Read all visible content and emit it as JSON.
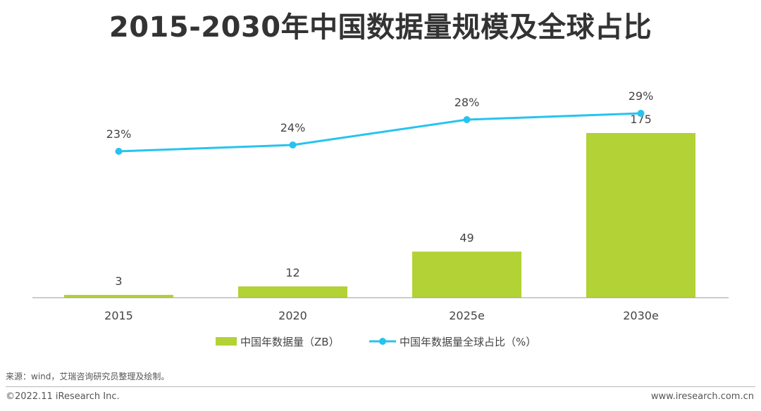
{
  "chart_data": {
    "type": "bar",
    "title": "2015-2030年中国数据量规模及全球占比",
    "categories": [
      "2015",
      "2020",
      "2025e",
      "2030e"
    ],
    "series": [
      {
        "name": "中国年数据量（ZB）",
        "type": "bar",
        "values": [
          3,
          12,
          49,
          175
        ],
        "labels": [
          "3",
          "12",
          "49",
          "175"
        ],
        "color": "#b2d235"
      },
      {
        "name": "中国年数据量全球占比（%）",
        "type": "line",
        "values": [
          23,
          24,
          28,
          29
        ],
        "labels": [
          "23%",
          "24%",
          "28%",
          "29%"
        ],
        "color": "#27c3ef"
      }
    ],
    "ylim_bar": [
      0,
      175
    ],
    "ylim_line": [
      0,
      30
    ],
    "grid": false,
    "legend_position": "bottom"
  },
  "colors": {
    "bar": "#b2d235",
    "line": "#27c3ef",
    "axis": "#9a9a9a",
    "text": "#444444"
  },
  "footer": {
    "source": "来源：wind，艾瑞咨询研究员整理及绘制。",
    "copyright": "©2022.11 iResearch Inc.",
    "website": "www.iresearch.com.cn"
  }
}
